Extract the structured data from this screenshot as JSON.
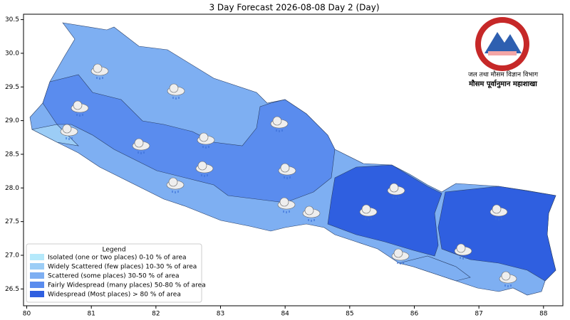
{
  "map": {
    "title": "3 Day Forecast 2026-08-08 Day 2 (Day)",
    "xlim": [
      79.95,
      88.3
    ],
    "ylim": [
      26.25,
      30.58
    ],
    "xticks": [
      80,
      81,
      82,
      83,
      84,
      85,
      86,
      87,
      88
    ],
    "yticks": [
      26.5,
      27.0,
      27.5,
      28.0,
      28.5,
      29.0,
      29.5,
      30.0,
      30.5
    ],
    "legend": {
      "title": "Legend",
      "items": [
        {
          "label": "Isolated (one or two places)  0-10 % of area",
          "color": "#b5e9fb"
        },
        {
          "label": "Widely Scattered (few places)  10-30 % of area",
          "color": "#9ccdf6"
        },
        {
          "label": "Scattered (some places)  30-50 % of area",
          "color": "#7eaff2"
        },
        {
          "label": "Fairly Widespread (many places)  50-80 % of area",
          "color": "#5a8cee"
        },
        {
          "label": "Widespread (Most places) > 80 % of area",
          "color": "#2f5fe0"
        }
      ]
    },
    "logo": {
      "line1": "जल तथा मौसम विज्ञान विभाग",
      "line2": "मौसम पूर्वानुमान महाशाखा"
    }
  }
}
